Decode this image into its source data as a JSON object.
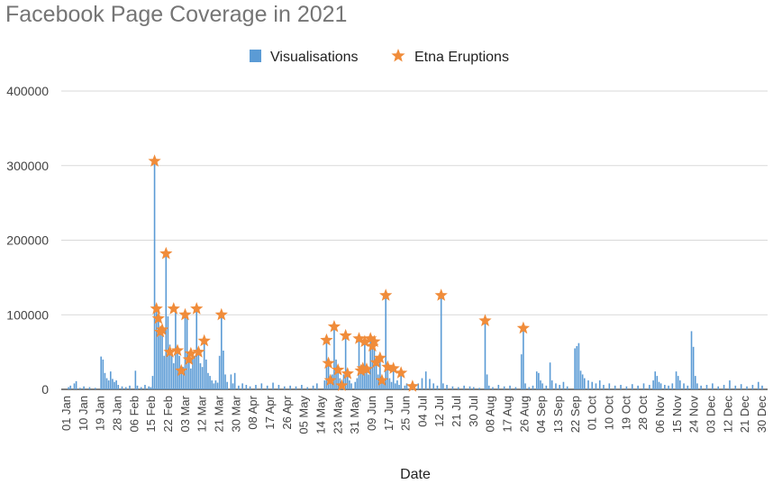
{
  "chart_data": {
    "type": "bar",
    "title": "Facebook Page Coverage in 2021",
    "xlabel": "Date",
    "ylabel": "",
    "ylim": [
      0,
      400000
    ],
    "y_ticks": [
      "0",
      "100000",
      "200000",
      "300000",
      "400000"
    ],
    "grid": "horizontal",
    "legend_position": "top",
    "x_tick_labels": [
      "01 Jan",
      "10 Jan",
      "19 Jan",
      "28 Jan",
      "06 Feb",
      "15 Feb",
      "22 Feb",
      "03 Mar",
      "12 Mar",
      "21 Mar",
      "30 Mar",
      "08 Apr",
      "17 Apr",
      "26 Apr",
      "05 May",
      "14 May",
      "23 May",
      "31 May",
      "09 Jun",
      "17 Jun",
      "25 Jun",
      "04 Jul",
      "12 Jul",
      "21 Jul",
      "30 Jul",
      "08 Aug",
      "17 Aug",
      "26 Aug",
      "04 Sep",
      "13 Sep",
      "22 Sep",
      "01 Oct",
      "10 Oct",
      "19 Oct",
      "28 Oct",
      "06 Nov",
      "15 Nov",
      "24 Nov",
      "03 Dec",
      "12 Dec",
      "21 Dec",
      "30 Dec"
    ],
    "series": [
      {
        "name": "Visualisations",
        "type": "bar",
        "color": "#5b9bd5",
        "points": [
          [
            "2021-01-02",
            3000
          ],
          [
            "2021-01-03",
            5000
          ],
          [
            "2021-01-05",
            8000
          ],
          [
            "2021-01-06",
            11000
          ],
          [
            "2021-01-08",
            2000
          ],
          [
            "2021-01-10",
            4000
          ],
          [
            "2021-01-13",
            3000
          ],
          [
            "2021-01-16",
            2000
          ],
          [
            "2021-01-19",
            44000
          ],
          [
            "2021-01-20",
            40000
          ],
          [
            "2021-01-21",
            22000
          ],
          [
            "2021-01-22",
            15000
          ],
          [
            "2021-01-23",
            12000
          ],
          [
            "2021-01-24",
            24000
          ],
          [
            "2021-01-25",
            14000
          ],
          [
            "2021-01-26",
            10000
          ],
          [
            "2021-01-27",
            12000
          ],
          [
            "2021-01-28",
            6000
          ],
          [
            "2021-01-30",
            4000
          ],
          [
            "2021-02-01",
            3000
          ],
          [
            "2021-02-03",
            5000
          ],
          [
            "2021-02-06",
            25000
          ],
          [
            "2021-02-07",
            5000
          ],
          [
            "2021-02-09",
            3000
          ],
          [
            "2021-02-11",
            6000
          ],
          [
            "2021-02-13",
            4000
          ],
          [
            "2021-02-14",
            3000
          ],
          [
            "2021-02-15",
            18000
          ],
          [
            "2021-02-16",
            306000
          ],
          [
            "2021-02-17",
            105000
          ],
          [
            "2021-02-18",
            92000
          ],
          [
            "2021-02-19",
            75000
          ],
          [
            "2021-02-20",
            78000
          ],
          [
            "2021-02-21",
            45000
          ],
          [
            "2021-02-22",
            182000
          ],
          [
            "2021-02-23",
            98000
          ],
          [
            "2021-02-24",
            60000
          ],
          [
            "2021-02-25",
            48000
          ],
          [
            "2021-02-26",
            35000
          ],
          [
            "2021-02-27",
            108000
          ],
          [
            "2021-02-28",
            52000
          ],
          [
            "2021-03-01",
            45000
          ],
          [
            "2021-03-02",
            25000
          ],
          [
            "2021-03-03",
            30000
          ],
          [
            "2021-03-04",
            100000
          ],
          [
            "2021-03-05",
            98000
          ],
          [
            "2021-03-06",
            40000
          ],
          [
            "2021-03-07",
            28000
          ],
          [
            "2021-03-08",
            50000
          ],
          [
            "2021-03-09",
            45000
          ],
          [
            "2021-03-10",
            108000
          ],
          [
            "2021-03-11",
            50000
          ],
          [
            "2021-03-12",
            35000
          ],
          [
            "2021-03-13",
            30000
          ],
          [
            "2021-03-14",
            65000
          ],
          [
            "2021-03-15",
            40000
          ],
          [
            "2021-03-16",
            22000
          ],
          [
            "2021-03-17",
            18000
          ],
          [
            "2021-03-18",
            12000
          ],
          [
            "2021-03-19",
            8000
          ],
          [
            "2021-03-20",
            12000
          ],
          [
            "2021-03-21",
            9000
          ],
          [
            "2021-03-22",
            45000
          ],
          [
            "2021-03-23",
            100000
          ],
          [
            "2021-03-24",
            52000
          ],
          [
            "2021-03-25",
            20000
          ],
          [
            "2021-03-26",
            10000
          ],
          [
            "2021-03-28",
            20000
          ],
          [
            "2021-03-29",
            8000
          ],
          [
            "2021-03-30",
            22000
          ],
          [
            "2021-04-01",
            5000
          ],
          [
            "2021-04-03",
            8000
          ],
          [
            "2021-04-05",
            6000
          ],
          [
            "2021-04-07",
            4000
          ],
          [
            "2021-04-10",
            6000
          ],
          [
            "2021-04-13",
            8000
          ],
          [
            "2021-04-16",
            5000
          ],
          [
            "2021-04-19",
            9000
          ],
          [
            "2021-04-22",
            6000
          ],
          [
            "2021-04-25",
            4000
          ],
          [
            "2021-04-28",
            5000
          ],
          [
            "2021-05-01",
            4000
          ],
          [
            "2021-05-04",
            6000
          ],
          [
            "2021-05-07",
            3000
          ],
          [
            "2021-05-10",
            5000
          ],
          [
            "2021-05-12",
            8000
          ],
          [
            "2021-05-16",
            12000
          ],
          [
            "2021-05-17",
            66000
          ],
          [
            "2021-05-18",
            35000
          ],
          [
            "2021-05-19",
            12000
          ],
          [
            "2021-05-20",
            20000
          ],
          [
            "2021-05-21",
            84000
          ],
          [
            "2021-05-22",
            40000
          ],
          [
            "2021-05-23",
            26000
          ],
          [
            "2021-05-24",
            15000
          ],
          [
            "2021-05-25",
            5000
          ],
          [
            "2021-05-26",
            20000
          ],
          [
            "2021-05-27",
            72000
          ],
          [
            "2021-05-28",
            21000
          ],
          [
            "2021-05-29",
            12000
          ],
          [
            "2021-05-30",
            8000
          ],
          [
            "2021-06-01",
            10000
          ],
          [
            "2021-06-02",
            15000
          ],
          [
            "2021-06-03",
            68000
          ],
          [
            "2021-06-04",
            25000
          ],
          [
            "2021-06-05",
            28000
          ],
          [
            "2021-06-06",
            64000
          ],
          [
            "2021-06-07",
            27000
          ],
          [
            "2021-06-08",
            20000
          ],
          [
            "2021-06-09",
            68000
          ],
          [
            "2021-06-10",
            58000
          ],
          [
            "2021-06-11",
            64000
          ],
          [
            "2021-06-12",
            36000
          ],
          [
            "2021-06-13",
            20000
          ],
          [
            "2021-06-14",
            42000
          ],
          [
            "2021-06-15",
            12000
          ],
          [
            "2021-06-16",
            10000
          ],
          [
            "2021-06-17",
            126000
          ],
          [
            "2021-06-18",
            30000
          ],
          [
            "2021-06-19",
            15000
          ],
          [
            "2021-06-20",
            10000
          ],
          [
            "2021-06-21",
            28000
          ],
          [
            "2021-06-22",
            8000
          ],
          [
            "2021-06-23",
            12000
          ],
          [
            "2021-06-24",
            6000
          ],
          [
            "2021-06-25",
            22000
          ],
          [
            "2021-06-27",
            5000
          ],
          [
            "2021-06-28",
            8000
          ],
          [
            "2021-07-02",
            3000
          ],
          [
            "2021-07-04",
            8000
          ],
          [
            "2021-07-06",
            15000
          ],
          [
            "2021-07-08",
            24000
          ],
          [
            "2021-07-10",
            14000
          ],
          [
            "2021-07-12",
            8000
          ],
          [
            "2021-07-14",
            5000
          ],
          [
            "2021-07-16",
            126000
          ],
          [
            "2021-07-17",
            8000
          ],
          [
            "2021-07-19",
            6000
          ],
          [
            "2021-07-22",
            4000
          ],
          [
            "2021-07-25",
            3000
          ],
          [
            "2021-07-28",
            5000
          ],
          [
            "2021-07-31",
            4000
          ],
          [
            "2021-08-02",
            3000
          ],
          [
            "2021-08-05",
            2000
          ],
          [
            "2021-08-08",
            92000
          ],
          [
            "2021-08-09",
            20000
          ],
          [
            "2021-08-10",
            5000
          ],
          [
            "2021-08-12",
            3000
          ],
          [
            "2021-08-15",
            6000
          ],
          [
            "2021-08-18",
            4000
          ],
          [
            "2021-08-21",
            5000
          ],
          [
            "2021-08-24",
            3000
          ],
          [
            "2021-08-27",
            47000
          ],
          [
            "2021-08-28",
            82000
          ],
          [
            "2021-08-29",
            8000
          ],
          [
            "2021-08-31",
            3000
          ],
          [
            "2021-09-02",
            5000
          ],
          [
            "2021-09-04",
            24000
          ],
          [
            "2021-09-05",
            22000
          ],
          [
            "2021-09-06",
            12000
          ],
          [
            "2021-09-07",
            8000
          ],
          [
            "2021-09-09",
            5000
          ],
          [
            "2021-09-11",
            36000
          ],
          [
            "2021-09-12",
            12000
          ],
          [
            "2021-09-14",
            8000
          ],
          [
            "2021-09-16",
            6000
          ],
          [
            "2021-09-18",
            10000
          ],
          [
            "2021-09-20",
            4000
          ],
          [
            "2021-09-24",
            55000
          ],
          [
            "2021-09-25",
            58000
          ],
          [
            "2021-09-26",
            62000
          ],
          [
            "2021-09-27",
            25000
          ],
          [
            "2021-09-28",
            20000
          ],
          [
            "2021-09-29",
            15000
          ],
          [
            "2021-10-01",
            12000
          ],
          [
            "2021-10-03",
            10000
          ],
          [
            "2021-10-05",
            8000
          ],
          [
            "2021-10-07",
            12000
          ],
          [
            "2021-10-09",
            6000
          ],
          [
            "2021-10-12",
            8000
          ],
          [
            "2021-10-15",
            5000
          ],
          [
            "2021-10-18",
            6000
          ],
          [
            "2021-10-21",
            4000
          ],
          [
            "2021-10-24",
            7000
          ],
          [
            "2021-10-27",
            5000
          ],
          [
            "2021-10-30",
            8000
          ],
          [
            "2021-11-02",
            6000
          ],
          [
            "2021-11-04",
            12000
          ],
          [
            "2021-11-05",
            24000
          ],
          [
            "2021-11-06",
            18000
          ],
          [
            "2021-11-07",
            10000
          ],
          [
            "2021-11-08",
            8000
          ],
          [
            "2021-11-10",
            6000
          ],
          [
            "2021-11-12",
            5000
          ],
          [
            "2021-11-14",
            8000
          ],
          [
            "2021-11-16",
            24000
          ],
          [
            "2021-11-17",
            18000
          ],
          [
            "2021-11-18",
            12000
          ],
          [
            "2021-11-20",
            8000
          ],
          [
            "2021-11-22",
            5000
          ],
          [
            "2021-11-24",
            78000
          ],
          [
            "2021-11-25",
            57000
          ],
          [
            "2021-11-26",
            18000
          ],
          [
            "2021-11-27",
            8000
          ],
          [
            "2021-11-29",
            5000
          ],
          [
            "2021-12-02",
            6000
          ],
          [
            "2021-12-05",
            8000
          ],
          [
            "2021-12-08",
            4000
          ],
          [
            "2021-12-11",
            6000
          ],
          [
            "2021-12-14",
            12000
          ],
          [
            "2021-12-17",
            5000
          ],
          [
            "2021-12-20",
            7000
          ],
          [
            "2021-12-23",
            4000
          ],
          [
            "2021-12-26",
            6000
          ],
          [
            "2021-12-29",
            10000
          ],
          [
            "2021-12-31",
            5000
          ]
        ]
      },
      {
        "name": "Etna Eruptions",
        "type": "scatter",
        "marker": "star",
        "color": "#f08c3a",
        "points": [
          [
            "2021-02-16",
            306000
          ],
          [
            "2021-02-17",
            108000
          ],
          [
            "2021-02-18",
            95000
          ],
          [
            "2021-02-19",
            77000
          ],
          [
            "2021-02-20",
            80000
          ],
          [
            "2021-02-22",
            182000
          ],
          [
            "2021-02-24",
            50000
          ],
          [
            "2021-02-26",
            108000
          ],
          [
            "2021-02-28",
            52000
          ],
          [
            "2021-03-02",
            25000
          ],
          [
            "2021-03-04",
            100000
          ],
          [
            "2021-03-06",
            40000
          ],
          [
            "2021-03-07",
            48000
          ],
          [
            "2021-03-10",
            108000
          ],
          [
            "2021-03-11",
            50000
          ],
          [
            "2021-03-14",
            65000
          ],
          [
            "2021-03-23",
            100000
          ],
          [
            "2021-05-17",
            66000
          ],
          [
            "2021-05-18",
            35000
          ],
          [
            "2021-05-19",
            12000
          ],
          [
            "2021-05-21",
            84000
          ],
          [
            "2021-05-23",
            26000
          ],
          [
            "2021-05-25",
            5000
          ],
          [
            "2021-05-27",
            72000
          ],
          [
            "2021-05-28",
            21000
          ],
          [
            "2021-06-03",
            68000
          ],
          [
            "2021-06-04",
            25000
          ],
          [
            "2021-06-05",
            28000
          ],
          [
            "2021-06-06",
            64000
          ],
          [
            "2021-06-07",
            27000
          ],
          [
            "2021-06-09",
            68000
          ],
          [
            "2021-06-10",
            58000
          ],
          [
            "2021-06-11",
            64000
          ],
          [
            "2021-06-12",
            36000
          ],
          [
            "2021-06-14",
            42000
          ],
          [
            "2021-06-15",
            12000
          ],
          [
            "2021-06-17",
            126000
          ],
          [
            "2021-06-18",
            30000
          ],
          [
            "2021-06-21",
            28000
          ],
          [
            "2021-06-25",
            22000
          ],
          [
            "2021-07-01",
            4000
          ],
          [
            "2021-07-16",
            126000
          ],
          [
            "2021-08-08",
            92000
          ],
          [
            "2021-08-28",
            82000
          ]
        ]
      }
    ]
  }
}
